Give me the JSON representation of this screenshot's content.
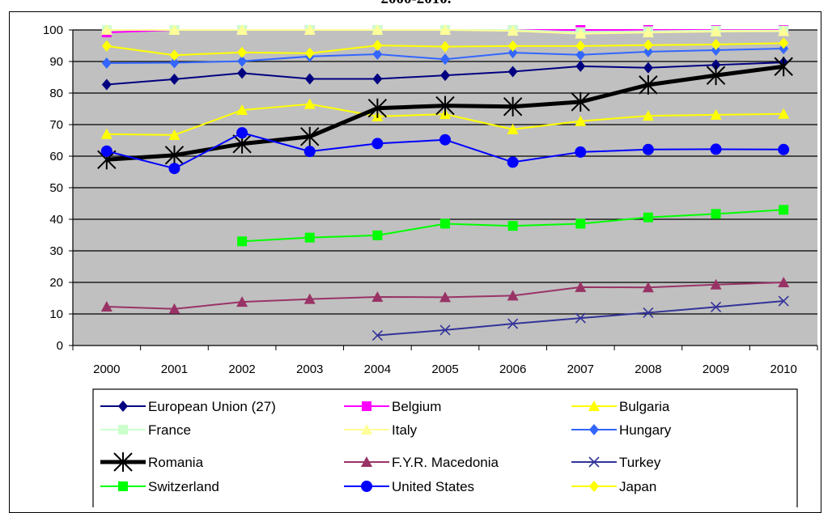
{
  "title_fragment": "2000-2010.",
  "chart_data": {
    "type": "line",
    "title": "",
    "xlabel": "",
    "ylabel": "",
    "x": [
      "2000",
      "2001",
      "2002",
      "2003",
      "2004",
      "2005",
      "2006",
      "2007",
      "2008",
      "2009",
      "2010"
    ],
    "ylim": [
      0,
      100
    ],
    "yticks": [
      0,
      10,
      20,
      30,
      40,
      50,
      60,
      70,
      80,
      90,
      100
    ],
    "grid": "horizontal",
    "plot_background": "#c0c0c0",
    "legend_position": "bottom",
    "series": [
      {
        "name": "European Union (27)",
        "color": "#000080",
        "marker": "diamond",
        "values": [
          82.7,
          84.4,
          86.3,
          84.5,
          84.5,
          85.6,
          86.8,
          88.5,
          88.0,
          88.9,
          89.7
        ]
      },
      {
        "name": "Belgium",
        "color": "#ff00ff",
        "marker": "square",
        "values": [
          99.2,
          100,
          100,
          100,
          100,
          100,
          100,
          100,
          100,
          100,
          100
        ]
      },
      {
        "name": "Bulgaria",
        "color": "#ffff00",
        "marker": "triangle",
        "values": [
          67.0,
          66.7,
          74.6,
          76.5,
          72.6,
          73.3,
          68.5,
          71.1,
          72.8,
          73.1,
          73.4
        ]
      },
      {
        "name": "France",
        "color": "#ccffcc",
        "marker": "square",
        "values": [
          100,
          100,
          100,
          100,
          100,
          100,
          100,
          99.3,
          99.6,
          99.8,
          99.8
        ]
      },
      {
        "name": "Italy",
        "color": "#ffff99",
        "marker": "triangle",
        "values": [
          100,
          100,
          100,
          100,
          100,
          100,
          99.7,
          98.8,
          99.2,
          99.5,
          99.6
        ]
      },
      {
        "name": "Hungary",
        "color": "#3366ff",
        "marker": "diamond",
        "values": [
          89.5,
          89.6,
          90.1,
          91.6,
          92.3,
          90.7,
          92.8,
          92.1,
          93.1,
          93.6,
          94.1
        ]
      },
      {
        "name": "Romania",
        "color": "#000000",
        "marker": "star",
        "values": [
          58.9,
          60.3,
          63.9,
          66.2,
          75.2,
          76.0,
          75.7,
          77.2,
          82.6,
          85.6,
          88.4
        ]
      },
      {
        "name": "F.Y.R. Macedonia",
        "color": "#993366",
        "marker": "triangle",
        "values": [
          12.3,
          11.6,
          13.8,
          14.7,
          15.4,
          15.3,
          15.8,
          18.5,
          18.4,
          19.3,
          20.0
        ]
      },
      {
        "name": "Turkey",
        "color": "#333399",
        "marker": "x",
        "values": [
          null,
          null,
          null,
          null,
          3.2,
          4.9,
          6.9,
          8.7,
          10.4,
          12.2,
          14.1
        ]
      },
      {
        "name": "Switzerland",
        "color": "#00ff00",
        "marker": "square",
        "values": [
          null,
          null,
          33.0,
          34.2,
          34.9,
          38.6,
          37.9,
          38.6,
          40.6,
          41.7,
          43.0
        ]
      },
      {
        "name": "United States",
        "color": "#0000ff",
        "marker": "circle",
        "values": [
          61.6,
          56.1,
          67.4,
          61.5,
          64.0,
          65.2,
          58.1,
          61.3,
          62.1,
          62.2,
          62.1
        ]
      },
      {
        "name": "Japan",
        "color": "#ffff00",
        "marker": "diamond",
        "values": [
          94.9,
          92.0,
          92.9,
          92.6,
          95.1,
          94.7,
          94.9,
          94.9,
          95.2,
          95.4,
          95.8
        ]
      }
    ]
  }
}
